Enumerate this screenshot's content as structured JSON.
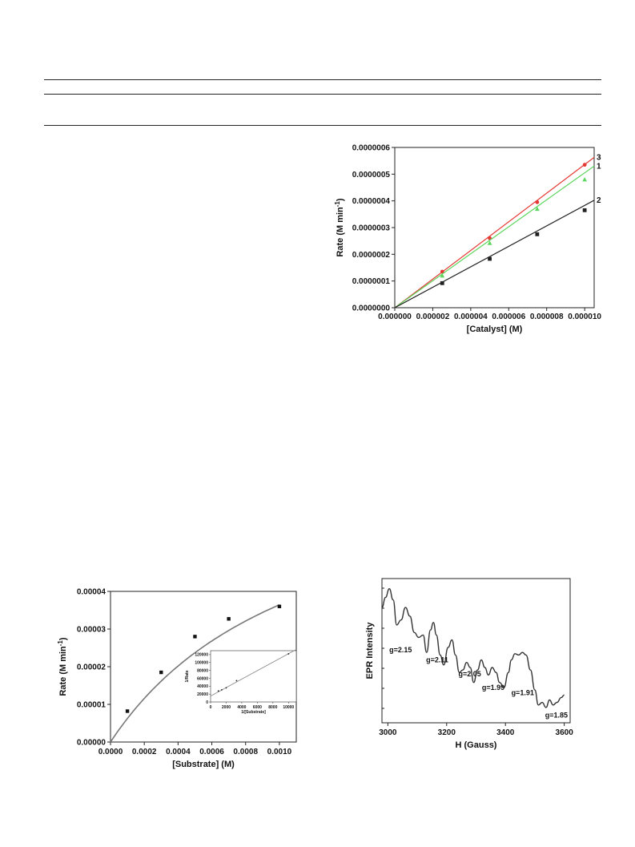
{
  "chart_data": [
    {
      "type": "line",
      "xlabel": "[Catalyst] (M)",
      "ylabel": "Rate (M min",
      "ylabel_sup": "-1",
      "ylabel_end": ")",
      "xlim": [
        0,
        1.05e-05
      ],
      "ylim": [
        0,
        6e-07
      ],
      "xticks": [
        "0.000000",
        "0.000002",
        "0.000004",
        "0.000006",
        "0.000008",
        "0.000010"
      ],
      "yticks": [
        "0.0000000",
        "0.0000001",
        "0.0000002",
        "0.0000003",
        "0.0000004",
        "0.0000005",
        "0.0000006"
      ],
      "series": [
        {
          "name": "3",
          "color": "#e53935",
          "marker": "circle",
          "x": [
            2.5e-06,
            5e-06,
            7.5e-06,
            1e-05
          ],
          "y": [
            1.35e-07,
            2.6e-07,
            3.95e-07,
            5.35e-07
          ],
          "fit_slope": 0.0536
        },
        {
          "name": "1",
          "color": "#5ed65e",
          "marker": "triangle",
          "x": [
            2.5e-06,
            5e-06,
            7.5e-06,
            1e-05
          ],
          "y": [
            1.2e-07,
            2.42e-07,
            3.7e-07,
            4.8e-07
          ],
          "fit_slope": 0.0505
        },
        {
          "name": "2",
          "color": "#222222",
          "marker": "square",
          "x": [
            2.5e-06,
            5e-06,
            7.5e-06,
            1e-05
          ],
          "y": [
            9.2e-08,
            1.83e-07,
            2.75e-07,
            3.65e-07
          ],
          "fit_slope": 0.0383
        }
      ]
    },
    {
      "type": "scatter",
      "xlabel": "[Substrate] (M)",
      "ylabel": "Rate (M min",
      "ylabel_sup": "-1",
      "ylabel_end": ")",
      "xlim": [
        0,
        0.0011
      ],
      "ylim": [
        0,
        4e-05
      ],
      "xticks": [
        "0.0000",
        "0.0002",
        "0.0004",
        "0.0006",
        "0.0008",
        "0.0010"
      ],
      "yticks": [
        "0.00000",
        "0.00001",
        "0.00002",
        "0.00003",
        "0.00004"
      ],
      "points": {
        "x": [
          0.0001,
          0.0003,
          0.0005,
          0.0007,
          0.001
        ],
        "y": [
          8.2e-06,
          1.85e-05,
          2.8e-05,
          3.27e-05,
          3.6e-05
        ]
      },
      "fit": {
        "model": "michaelis-menten",
        "vmax": 7.87e-05,
        "km": 0.00116
      },
      "inset": {
        "type": "scatter",
        "xlabel": "1/[Substrate]",
        "ylabel": "1/Rate",
        "xlim": [
          0,
          11000
        ],
        "ylim": [
          0,
          130000
        ],
        "xticks": [
          "0",
          "2000",
          "4000",
          "6000",
          "8000",
          "10000"
        ],
        "yticks": [
          "0",
          "20000",
          "40000",
          "60000",
          "80000",
          "100000",
          "120000"
        ],
        "points": {
          "x": [
            1000,
            1429,
            2000,
            3333,
            10000
          ],
          "y": [
            27800,
            30600,
            35700,
            54000,
            122000
          ]
        },
        "fit_line": {
          "x": [
            0,
            11000
          ],
          "y": [
            15000,
            133000
          ]
        }
      }
    },
    {
      "type": "line",
      "xlabel": "H (Gauss)",
      "ylabel": "EPR Intensity",
      "xlim": [
        2980,
        3620
      ],
      "ylim": [
        0,
        1
      ],
      "xticks": [
        "3000",
        "3200",
        "3400",
        "3600"
      ],
      "xtick_values": [
        3000,
        3200,
        3400,
        3600
      ],
      "show_yticks": false,
      "series": [
        {
          "name": "",
          "color": "#333333",
          "x": [
            2980,
            2992,
            3005,
            3018,
            3030,
            3045,
            3060,
            3075,
            3090,
            3105,
            3120,
            3132,
            3145,
            3155,
            3165,
            3178,
            3190,
            3205,
            3218,
            3230,
            3243,
            3255,
            3268,
            3280,
            3292,
            3305,
            3318,
            3330,
            3342,
            3355,
            3368,
            3380,
            3395,
            3410,
            3420,
            3432,
            3445,
            3458,
            3470,
            3485,
            3500,
            3512,
            3525,
            3538,
            3550,
            3562,
            3575,
            3590,
            3600
          ],
          "y": [
            0.82,
            0.9,
            0.97,
            0.88,
            0.68,
            0.72,
            0.82,
            0.75,
            0.62,
            0.58,
            0.6,
            0.46,
            0.64,
            0.7,
            0.6,
            0.44,
            0.36,
            0.5,
            0.56,
            0.44,
            0.3,
            0.32,
            0.38,
            0.34,
            0.22,
            0.32,
            0.4,
            0.34,
            0.28,
            0.34,
            0.3,
            0.22,
            0.18,
            0.3,
            0.4,
            0.45,
            0.44,
            0.46,
            0.44,
            0.32,
            0.16,
            0.04,
            0.06,
            0.02,
            0.08,
            0.04,
            0.06,
            0.1,
            0.12
          ]
        }
      ],
      "annotations": [
        {
          "text": "g=2.15",
          "x": 3005,
          "y": 0.46
        },
        {
          "text": "g=2.11",
          "x": 3130,
          "y": 0.38
        },
        {
          "text": "g=2.05",
          "x": 3240,
          "y": 0.27
        },
        {
          "text": "g=1.99",
          "x": 3320,
          "y": 0.16
        },
        {
          "text": "g=1.91",
          "x": 3420,
          "y": 0.12
        },
        {
          "text": "g=1.85",
          "x": 3535,
          "y": -0.06
        }
      ]
    }
  ]
}
